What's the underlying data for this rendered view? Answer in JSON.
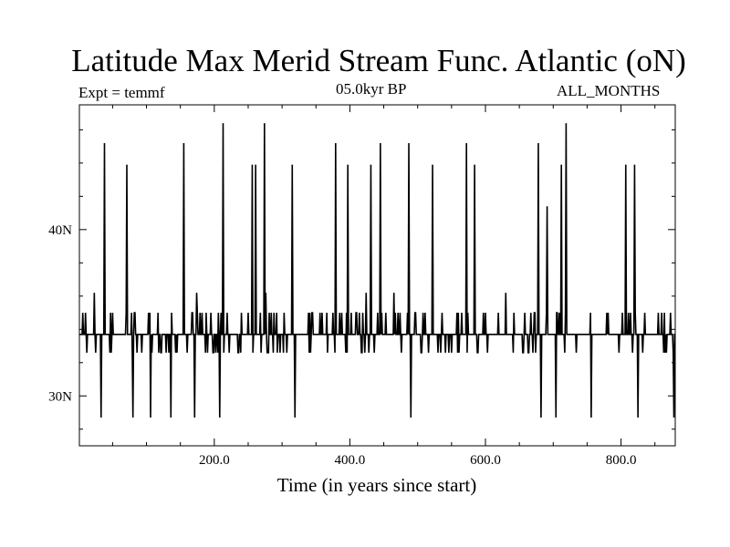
{
  "chart_data": {
    "type": "line",
    "title": "Latitude Max Merid Stream Func. Atlantic (oN)",
    "subtitle_left": "Expt = temmf",
    "subtitle_center": "05.0kyr BP",
    "subtitle_right": "ALL_MONTHS",
    "xlabel": "Time (in years since start)",
    "ylabel": "",
    "xlim": [
      1,
      880
    ],
    "ylim": [
      27,
      47.5
    ],
    "x_ticks": [
      200,
      400,
      600,
      800
    ],
    "x_tick_labels": [
      "200.0",
      "400.0",
      "600.0",
      "800.0"
    ],
    "y_ticks": [
      30,
      40
    ],
    "y_tick_labels": [
      "30N",
      "40N"
    ],
    "baseline": 33.7,
    "noise_levels": [
      32.6,
      33.7,
      35.0
    ],
    "series": [
      {
        "points": [
          [
            38,
            45.2
          ],
          [
            71,
            43.9
          ],
          [
            155,
            45.2
          ],
          [
            213,
            46.4
          ],
          [
            256,
            43.9
          ],
          [
            261,
            43.9
          ],
          [
            274,
            46.4
          ],
          [
            315,
            43.9
          ],
          [
            379,
            45.2
          ],
          [
            397,
            43.9
          ],
          [
            431,
            43.9
          ],
          [
            445,
            45.2
          ],
          [
            465,
            36.2
          ],
          [
            487,
            45.2
          ],
          [
            522,
            43.9
          ],
          [
            572,
            45.2
          ],
          [
            584,
            43.9
          ],
          [
            678,
            45.2
          ],
          [
            691,
            41.4
          ],
          [
            712,
            43.9
          ],
          [
            719,
            46.4
          ],
          [
            807,
            43.9
          ],
          [
            820,
            43.9
          ],
          [
            33,
            28.7
          ],
          [
            80,
            28.7
          ],
          [
            106,
            28.7
          ],
          [
            136,
            28.7
          ],
          [
            171,
            28.7
          ],
          [
            208,
            28.7
          ],
          [
            319,
            28.7
          ],
          [
            490,
            28.7
          ],
          [
            682,
            28.7
          ],
          [
            704,
            28.7
          ],
          [
            756,
            28.7
          ],
          [
            825,
            28.7
          ],
          [
            878,
            28.7
          ],
          [
            23,
            36.2
          ],
          [
            174,
            36.2
          ],
          [
            276,
            36.2
          ],
          [
            424,
            36.2
          ],
          [
            630,
            36.2
          ]
        ]
      }
    ],
    "grid": false
  }
}
